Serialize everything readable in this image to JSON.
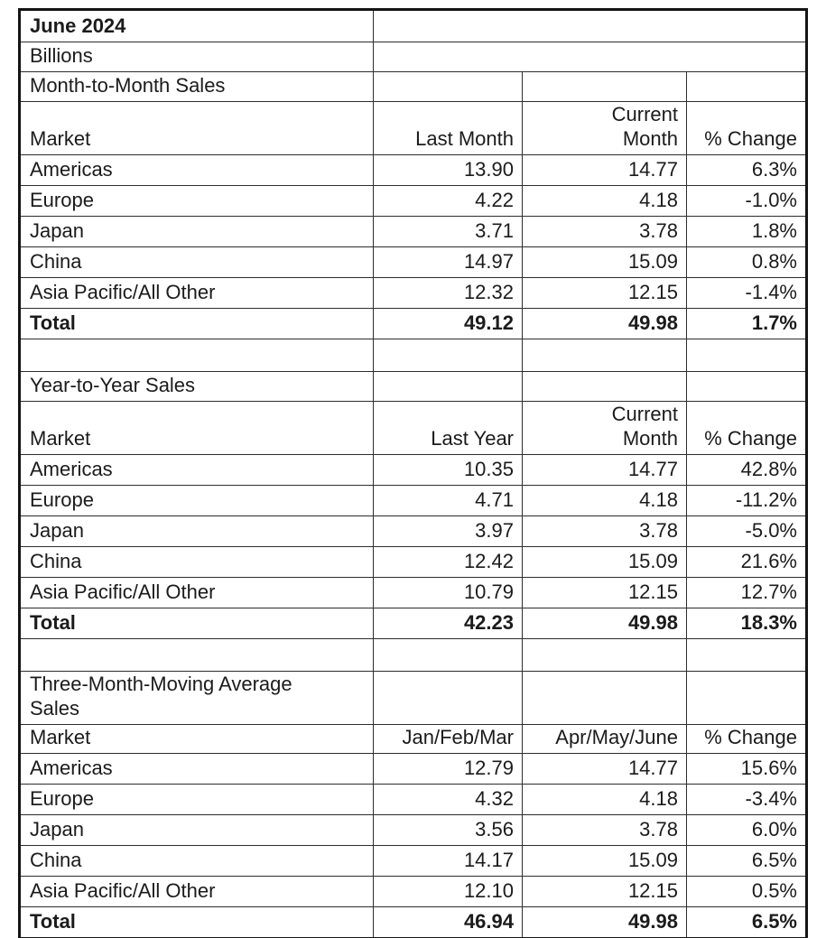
{
  "report": {
    "title": "June 2024",
    "units": "Billions"
  },
  "sections": [
    {
      "title": "Month-to-Month Sales",
      "headers": [
        "Market",
        "Last Month",
        "Current\nMonth",
        "% Change"
      ],
      "rows": [
        [
          "Americas",
          "13.90",
          "14.77",
          "6.3%"
        ],
        [
          "Europe",
          "4.22",
          "4.18",
          "-1.0%"
        ],
        [
          "Japan",
          "3.71",
          "3.78",
          "1.8%"
        ],
        [
          "China",
          "14.97",
          "15.09",
          "0.8%"
        ],
        [
          "Asia Pacific/All Other",
          "12.32",
          "12.15",
          "-1.4%"
        ]
      ],
      "total": [
        "Total",
        "49.12",
        "49.98",
        "1.7%"
      ]
    },
    {
      "title": "Year-to-Year Sales",
      "headers": [
        "Market",
        "Last Year",
        "Current\nMonth",
        "% Change"
      ],
      "rows": [
        [
          "Americas",
          "10.35",
          "14.77",
          "42.8%"
        ],
        [
          "Europe",
          "4.71",
          "4.18",
          "-11.2%"
        ],
        [
          "Japan",
          "3.97",
          "3.78",
          "-5.0%"
        ],
        [
          "China",
          "12.42",
          "15.09",
          "21.6%"
        ],
        [
          "Asia Pacific/All Other",
          "10.79",
          "12.15",
          "12.7%"
        ]
      ],
      "total": [
        "Total",
        "42.23",
        "49.98",
        "18.3%"
      ]
    },
    {
      "title": "Three-Month-Moving Average\nSales",
      "headers": [
        "Market",
        "Jan/Feb/Mar",
        "Apr/May/June",
        "% Change"
      ],
      "rows": [
        [
          "Americas",
          "12.79",
          "14.77",
          "15.6%"
        ],
        [
          "Europe",
          "4.32",
          "4.18",
          "-3.4%"
        ],
        [
          "Japan",
          "3.56",
          "3.78",
          "6.0%"
        ],
        [
          "China",
          "14.17",
          "15.09",
          "6.5%"
        ],
        [
          "Asia Pacific/All Other",
          "12.10",
          "12.15",
          "0.5%"
        ]
      ],
      "total": [
        "Total",
        "46.94",
        "49.98",
        "6.5%"
      ]
    }
  ],
  "chart_data": [
    {
      "type": "table",
      "title": "Month-to-Month Sales (June 2024, Billions)",
      "columns": [
        "Market",
        "Last Month",
        "Current Month",
        "% Change"
      ],
      "rows": [
        [
          "Americas",
          13.9,
          14.77,
          "6.3%"
        ],
        [
          "Europe",
          4.22,
          4.18,
          "-1.0%"
        ],
        [
          "Japan",
          3.71,
          3.78,
          "1.8%"
        ],
        [
          "China",
          14.97,
          15.09,
          "0.8%"
        ],
        [
          "Asia Pacific/All Other",
          12.32,
          12.15,
          "-1.4%"
        ],
        [
          "Total",
          49.12,
          49.98,
          "1.7%"
        ]
      ]
    },
    {
      "type": "table",
      "title": "Year-to-Year Sales (June 2024, Billions)",
      "columns": [
        "Market",
        "Last Year",
        "Current Month",
        "% Change"
      ],
      "rows": [
        [
          "Americas",
          10.35,
          14.77,
          "42.8%"
        ],
        [
          "Europe",
          4.71,
          4.18,
          "-11.2%"
        ],
        [
          "Japan",
          3.97,
          3.78,
          "-5.0%"
        ],
        [
          "China",
          12.42,
          15.09,
          "21.6%"
        ],
        [
          "Asia Pacific/All Other",
          10.79,
          12.15,
          "12.7%"
        ],
        [
          "Total",
          42.23,
          49.98,
          "18.3%"
        ]
      ]
    },
    {
      "type": "table",
      "title": "Three-Month-Moving Average Sales (June 2024, Billions)",
      "columns": [
        "Market",
        "Jan/Feb/Mar",
        "Apr/May/June",
        "% Change"
      ],
      "rows": [
        [
          "Americas",
          12.79,
          14.77,
          "15.6%"
        ],
        [
          "Europe",
          4.32,
          4.18,
          "-3.4%"
        ],
        [
          "Japan",
          3.56,
          3.78,
          "6.0%"
        ],
        [
          "China",
          14.17,
          15.09,
          "6.5%"
        ],
        [
          "Asia Pacific/All Other",
          12.1,
          12.15,
          "0.5%"
        ],
        [
          "Total",
          46.94,
          49.98,
          "6.5%"
        ]
      ]
    }
  ]
}
